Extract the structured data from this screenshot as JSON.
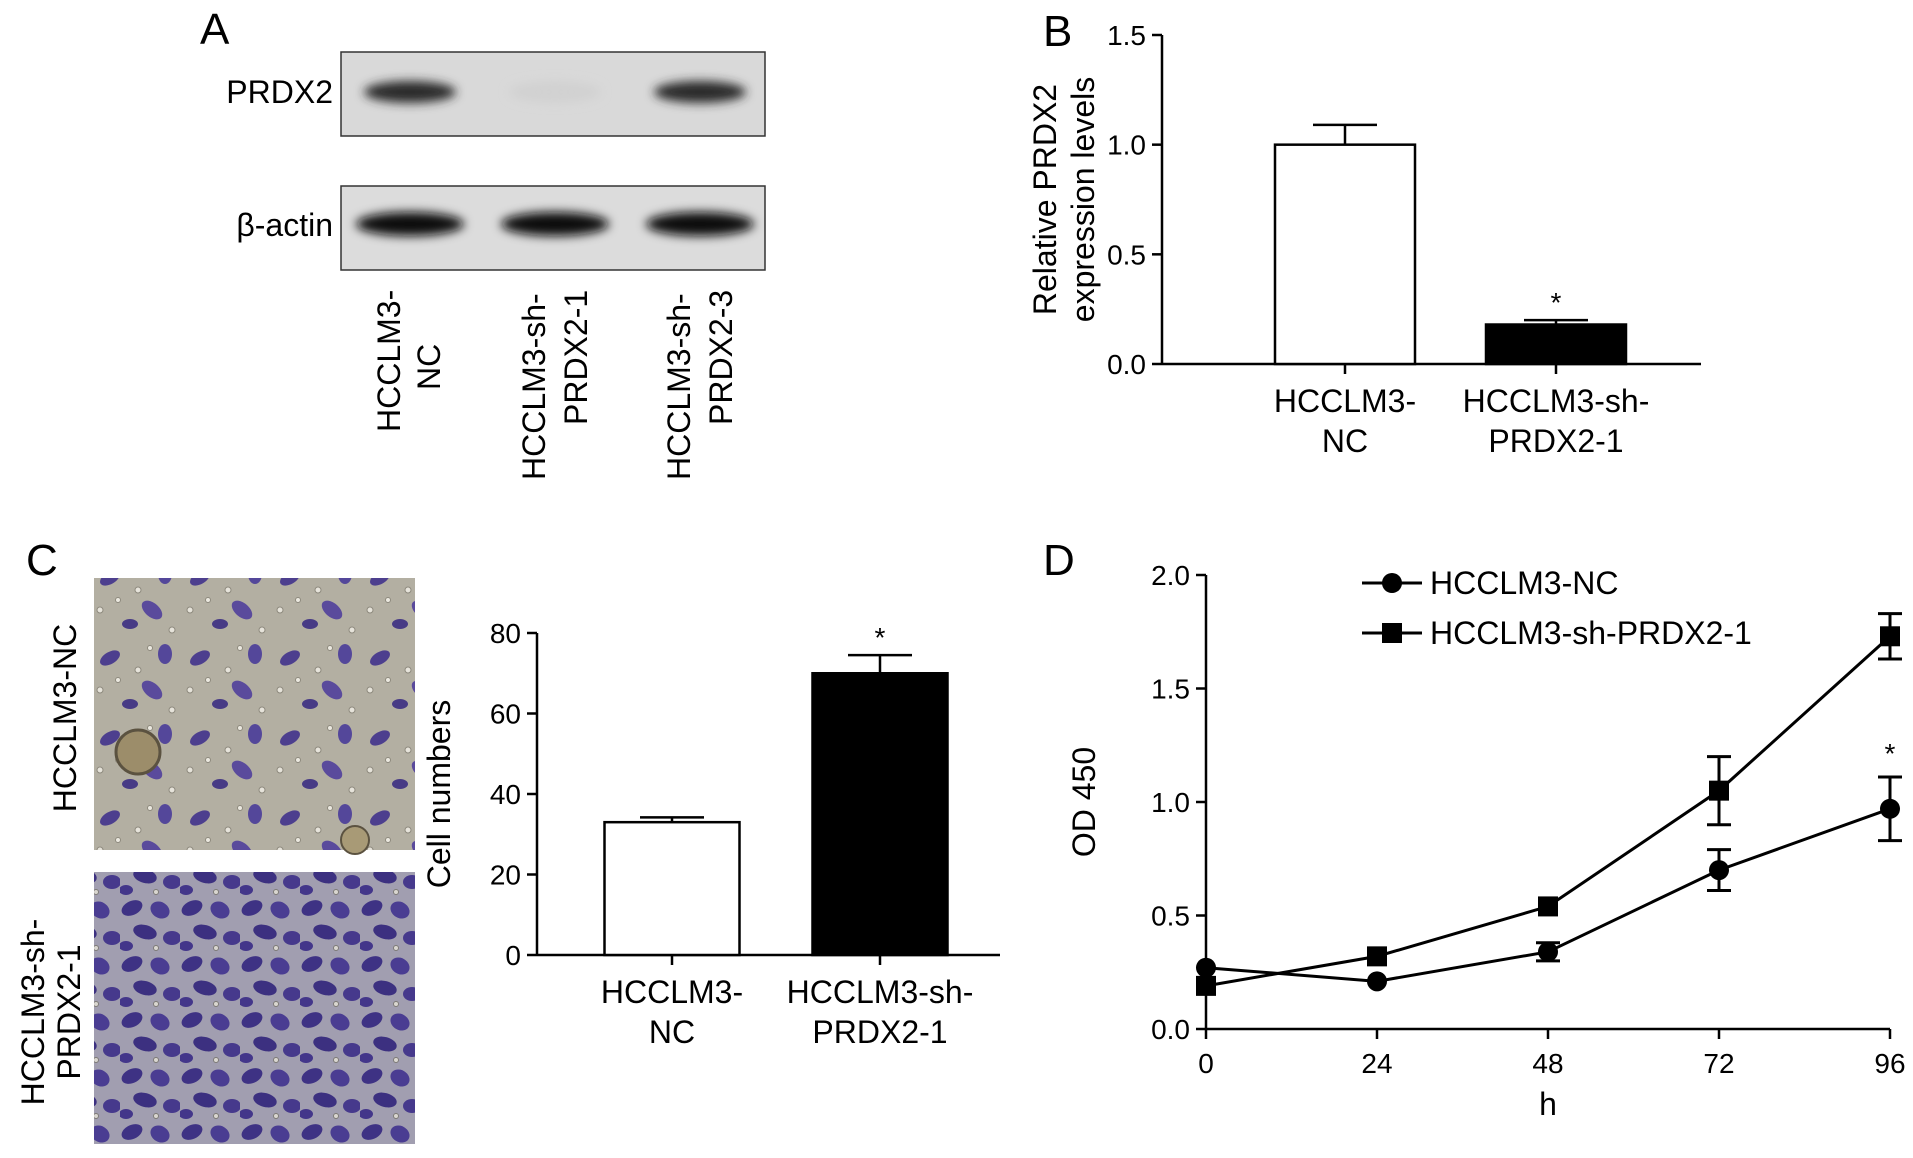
{
  "panels": {
    "A": {
      "letter": "A",
      "blot_labels": [
        "PRDX2",
        "β-actin"
      ],
      "lanes": [
        [
          "HCCLM3-",
          "NC"
        ],
        [
          "HCCLM3-sh-",
          "PRDX2-1"
        ],
        [
          "HCCLM3-sh-",
          "PRDX2-3"
        ]
      ],
      "band_intensity": {
        "PRDX2": [
          0.9,
          0.12,
          0.9
        ],
        "beta_actin": [
          1.0,
          1.0,
          1.0
        ]
      }
    },
    "B": {
      "letter": "B"
    },
    "C": {
      "letter": "C",
      "image_labels": [
        [
          "HCCLM3-NC"
        ],
        [
          "HCCLM3-sh-",
          "PRDX2-1"
        ]
      ]
    },
    "D": {
      "letter": "D"
    }
  },
  "chart_data": [
    {
      "panel": "B",
      "type": "bar",
      "categories": [
        [
          "HCCLM3-",
          "NC"
        ],
        [
          "HCCLM3-sh-",
          "PRDX2-1"
        ]
      ],
      "values": [
        1.0,
        0.18
      ],
      "errors": [
        0.09,
        0.02
      ],
      "bar_colors": [
        "#ffffff",
        "#000000"
      ],
      "significance": [
        "",
        "*"
      ],
      "ylabel": [
        "Relative PRDX2",
        "expression levels"
      ],
      "ylim": [
        0,
        1.5
      ],
      "yticks": [
        "0.0",
        "0.5",
        "1.0",
        "1.5"
      ],
      "grid": false
    },
    {
      "panel": "C",
      "type": "bar",
      "categories": [
        [
          "HCCLM3-",
          "NC"
        ],
        [
          "HCCLM3-sh-",
          "PRDX2-1"
        ]
      ],
      "values": [
        33,
        70
      ],
      "errors": [
        1.2,
        4.5
      ],
      "bar_colors": [
        "#ffffff",
        "#000000"
      ],
      "significance": [
        "",
        "*"
      ],
      "ylabel": [
        "Cell numbers"
      ],
      "ylim": [
        0,
        80
      ],
      "yticks": [
        "0",
        "20",
        "40",
        "60",
        "80"
      ],
      "grid": false
    },
    {
      "panel": "D",
      "type": "line",
      "x": [
        0,
        24,
        48,
        72,
        96
      ],
      "xlabel": "h",
      "ylabel": "OD 450",
      "xlim": [
        0,
        96
      ],
      "ylim": [
        0,
        2.0
      ],
      "xticks": [
        "0",
        "24",
        "48",
        "72",
        "96"
      ],
      "yticks": [
        "0.0",
        "0.5",
        "1.0",
        "1.5",
        "2.0"
      ],
      "legend_position": "top-left",
      "grid": false,
      "series": [
        {
          "name": "HCCLM3-NC",
          "marker": "circle",
          "values": [
            0.27,
            0.21,
            0.34,
            0.7,
            0.97
          ],
          "errors": [
            0.02,
            0.02,
            0.04,
            0.09,
            0.14
          ]
        },
        {
          "name": "HCCLM3-sh-PRDX2-1",
          "marker": "square",
          "values": [
            0.19,
            0.32,
            0.54,
            1.05,
            1.73
          ],
          "errors": [
            0.02,
            0.02,
            0.02,
            0.15,
            0.1
          ]
        }
      ],
      "annotations": [
        {
          "text": "*",
          "x": 96
        }
      ]
    }
  ]
}
